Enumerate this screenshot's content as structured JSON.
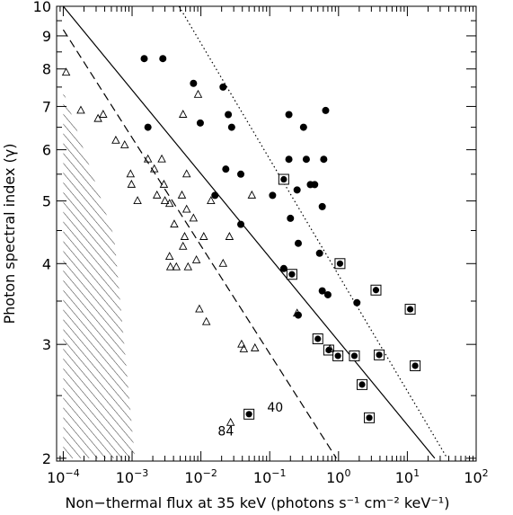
{
  "chart_data": {
    "type": "scatter",
    "title": "",
    "xlabel": "Non−thermal flux at 35 keV  (photons s⁻¹ cm⁻² keV⁻¹)",
    "ylabel": "Photon spectral index (γ)",
    "x_scale": "log",
    "y_scale": "log",
    "xlim": [
      8e-05,
      100
    ],
    "ylim": [
      1.98,
      10
    ],
    "grid": false,
    "legend": "none",
    "x_ticks": [
      {
        "value": 0.0001,
        "base": "10",
        "exp": "−4"
      },
      {
        "value": 0.001,
        "base": "10",
        "exp": "−3"
      },
      {
        "value": 0.01,
        "base": "10",
        "exp": "−2"
      },
      {
        "value": 0.1,
        "base": "10",
        "exp": "−1"
      },
      {
        "value": 1,
        "base": "10",
        "exp": "0"
      },
      {
        "value": 10,
        "base": "10",
        "exp": "1"
      },
      {
        "value": 100,
        "base": "10",
        "exp": "2"
      }
    ],
    "y_ticks": [
      {
        "value": 2,
        "label": "2"
      },
      {
        "value": 3,
        "label": "3"
      },
      {
        "value": 4,
        "label": "4"
      },
      {
        "value": 5,
        "label": "5"
      },
      {
        "value": 6,
        "label": "6"
      },
      {
        "value": 7,
        "label": "7"
      },
      {
        "value": 8,
        "label": "8"
      },
      {
        "value": 9,
        "label": "9"
      },
      {
        "value": 10,
        "label": "10"
      }
    ],
    "lines": [
      {
        "style": "solid",
        "points": [
          [
            0.0001,
            10
          ],
          [
            25,
            2
          ]
        ]
      },
      {
        "style": "dashed",
        "points": [
          [
            0.0001,
            9.2
          ],
          [
            0.93,
            2
          ]
        ]
      },
      {
        "style": "dotted",
        "points": [
          [
            0.0048,
            10
          ],
          [
            38,
            2
          ]
        ]
      }
    ],
    "shaded_region": {
      "pattern": "hatched",
      "points": [
        [
          0.0001,
          7.4
        ],
        [
          0.00055,
          4.4
        ],
        [
          0.0011,
          2
        ],
        [
          0.0001,
          2
        ]
      ]
    },
    "series": [
      {
        "marker": "filled-circle",
        "points": [
          [
            0.0015,
            8.3
          ],
          [
            0.0028,
            8.3
          ],
          [
            0.0078,
            7.6
          ],
          [
            0.0098,
            6.6
          ],
          [
            0.0017,
            6.5
          ],
          [
            0.021,
            7.5
          ],
          [
            0.025,
            6.8
          ],
          [
            0.028,
            6.5
          ],
          [
            0.038,
            5.5
          ],
          [
            0.023,
            5.6
          ],
          [
            0.016,
            5.1
          ],
          [
            0.038,
            4.6
          ],
          [
            0.11,
            5.1
          ],
          [
            0.19,
            6.8
          ],
          [
            0.31,
            6.5
          ],
          [
            0.19,
            5.8
          ],
          [
            0.25,
            5.2
          ],
          [
            0.34,
            5.8
          ],
          [
            0.39,
            5.3
          ],
          [
            0.45,
            5.3
          ],
          [
            0.61,
            5.8
          ],
          [
            0.65,
            6.9
          ],
          [
            0.58,
            4.9
          ],
          [
            0.2,
            4.7
          ],
          [
            0.26,
            4.3
          ],
          [
            0.16,
            3.93
          ],
          [
            0.53,
            4.15
          ],
          [
            0.58,
            3.63
          ],
          [
            0.7,
            3.58
          ],
          [
            1.85,
            3.48
          ],
          [
            0.26,
            3.33
          ]
        ]
      },
      {
        "marker": "boxed-filled-circle",
        "points": [
          [
            0.16,
            5.4
          ],
          [
            0.21,
            3.85
          ],
          [
            1.05,
            4.0
          ],
          [
            3.5,
            3.64
          ],
          [
            11,
            3.4
          ],
          [
            0.5,
            3.06
          ],
          [
            0.72,
            2.94
          ],
          [
            0.98,
            2.88
          ],
          [
            1.7,
            2.88
          ],
          [
            3.9,
            2.89
          ],
          [
            13,
            2.78
          ],
          [
            2.2,
            2.6
          ],
          [
            2.8,
            2.31
          ],
          [
            0.05,
            2.34
          ]
        ]
      },
      {
        "marker": "open-triangle",
        "points": [
          [
            0.00011,
            7.9
          ],
          [
            0.00018,
            6.9
          ],
          [
            0.00032,
            6.7
          ],
          [
            0.00038,
            6.8
          ],
          [
            0.00058,
            6.2
          ],
          [
            0.00078,
            6.1
          ],
          [
            0.0091,
            7.3
          ],
          [
            0.0055,
            6.8
          ],
          [
            0.00095,
            5.5
          ],
          [
            0.0017,
            5.8
          ],
          [
            0.0021,
            5.6
          ],
          [
            0.0027,
            5.8
          ],
          [
            0.0023,
            5.1
          ],
          [
            0.003,
            5.0
          ],
          [
            0.0029,
            5.3
          ],
          [
            0.0062,
            5.5
          ],
          [
            0.00098,
            5.3
          ],
          [
            0.0012,
            5.0
          ],
          [
            0.0053,
            5.1
          ],
          [
            0.0035,
            4.95
          ],
          [
            0.0062,
            4.85
          ],
          [
            0.014,
            5.0
          ],
          [
            0.0078,
            4.7
          ],
          [
            0.0058,
            4.4
          ],
          [
            0.0041,
            4.6
          ],
          [
            0.0055,
            4.25
          ],
          [
            0.011,
            4.4
          ],
          [
            0.0086,
            4.05
          ],
          [
            0.0035,
            4.1
          ],
          [
            0.0044,
            3.95
          ],
          [
            0.0036,
            3.95
          ],
          [
            0.0065,
            3.95
          ],
          [
            0.0095,
            3.4
          ],
          [
            0.012,
            3.25
          ],
          [
            0.055,
            5.1
          ],
          [
            0.039,
            3.0
          ],
          [
            0.061,
            2.96
          ],
          [
            0.026,
            4.4
          ],
          [
            0.021,
            4.0
          ],
          [
            0.25,
            3.35
          ],
          [
            0.75,
            2.95
          ],
          [
            0.042,
            2.95
          ],
          [
            0.027,
            2.27
          ]
        ]
      }
    ],
    "annotations": [
      {
        "text": "40",
        "x": 0.12,
        "y": 2.36
      },
      {
        "text": "84",
        "x": 0.023,
        "y": 2.17
      }
    ]
  }
}
